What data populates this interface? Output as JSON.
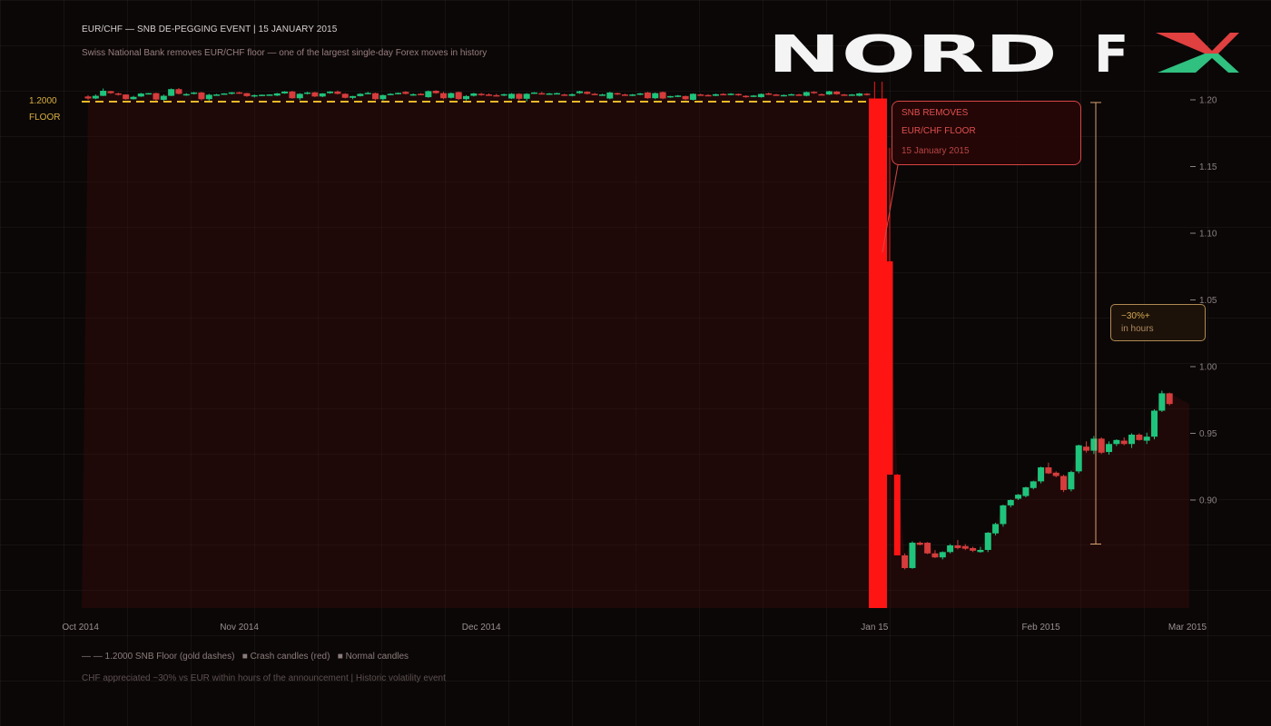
{
  "header": {
    "title": "EUR/CHF — SNB DE-PEGGING EVENT | 15 JANUARY 2015",
    "subtitle": "Swiss National Bank removes EUR/CHF floor — one of the largest single-day Forex moves in history"
  },
  "logo": {
    "text": "NORD FX",
    "colors": {
      "x_top": "#e04040",
      "x_bottom": "#30c080"
    }
  },
  "floor_label": {
    "value": "1.2000",
    "text": "FLOOR"
  },
  "callout": {
    "line1": "SNB REMOVES",
    "line2": "EUR/CHF FLOOR",
    "date": "15 January 2015"
  },
  "move_box": {
    "line1": "−30%+",
    "line2": "in hours"
  },
  "legend": {
    "floor": "— — 1.2000 SNB Floor (gold dashes)",
    "crash": "■ Crash candles (red)",
    "normal": "■ Normal candles"
  },
  "footnote": "CHF appreciated ~30% vs EUR within hours of the announcement | Historic volatility event",
  "colors": {
    "up": "#1fc47c",
    "down": "#d63c3c",
    "crash": "#ff1414",
    "floor": "#e8b828",
    "bracket": "#d6a070",
    "background": "#0b0707"
  },
  "chart_data": {
    "type": "candlestick",
    "instrument": "EUR/CHF",
    "ylim": [
      0.819,
      1.2136
    ],
    "yticks": [
      "1.20",
      "1.15",
      "1.10",
      "1.05",
      "1.00",
      "0.95",
      "0.90"
    ],
    "ytick_values": [
      1.2,
      1.15,
      1.1,
      1.05,
      1.0,
      0.95,
      0.9
    ],
    "xticks": [
      {
        "label": "Oct 2014",
        "index": -1
      },
      {
        "label": "Nov 2014",
        "index": 20
      },
      {
        "label": "Dec 2014",
        "index": 52
      },
      {
        "label": "Jan 15",
        "index": 104
      },
      {
        "label": "Feb 2015",
        "index": 126
      },
      {
        "label": "Mar 2015",
        "index": 146
      }
    ],
    "grid": true,
    "floor_level": 1.2,
    "move_bracket": [
      1.198,
      0.867
    ],
    "crash_indices": [
      104,
      105,
      106,
      107
    ],
    "ohlc": [
      [
        1.2025,
        1.2035,
        1.2,
        1.201
      ],
      [
        1.201,
        1.204,
        1.2005,
        1.203
      ],
      [
        1.203,
        1.2085,
        1.2028,
        1.2068
      ],
      [
        1.2065,
        1.2068,
        1.2045,
        1.205
      ],
      [
        1.2048,
        1.2054,
        1.2032,
        1.2038
      ],
      [
        1.204,
        1.2042,
        1.2,
        1.2005
      ],
      [
        1.2005,
        1.203,
        1.2002,
        1.2022
      ],
      [
        1.2025,
        1.2052,
        1.2022,
        1.2047
      ],
      [
        1.2045,
        1.2052,
        1.204,
        1.205
      ],
      [
        1.205,
        1.2054,
        1.199,
        1.2002
      ],
      [
        1.2,
        1.204,
        1.1992,
        1.203
      ],
      [
        1.203,
        1.2085,
        1.2028,
        1.208
      ],
      [
        1.208,
        1.2088,
        1.204,
        1.2045
      ],
      [
        1.204,
        1.205,
        1.203,
        1.2043
      ],
      [
        1.2045,
        1.2058,
        1.204,
        1.2055
      ],
      [
        1.2055,
        1.206,
        1.1995,
        1.2005
      ],
      [
        1.2005,
        1.2045,
        1.199,
        1.2038
      ],
      [
        1.2038,
        1.2045,
        1.2033,
        1.204
      ],
      [
        1.2042,
        1.205,
        1.2038,
        1.2048
      ],
      [
        1.2045,
        1.2058,
        1.204,
        1.2056
      ],
      [
        1.2056,
        1.206,
        1.2044,
        1.2048
      ],
      [
        1.205,
        1.2052,
        1.2022,
        1.2028
      ],
      [
        1.2025,
        1.204,
        1.2018,
        1.2035
      ],
      [
        1.2035,
        1.204,
        1.2032,
        1.2038
      ],
      [
        1.2036,
        1.2042,
        1.2034,
        1.204
      ],
      [
        1.2032,
        1.2052,
        1.2028,
        1.2048
      ],
      [
        1.2048,
        1.2065,
        1.2045,
        1.2062
      ],
      [
        1.2062,
        1.2068,
        1.2008,
        1.2012
      ],
      [
        1.2012,
        1.205,
        1.1998,
        1.2045
      ],
      [
        1.205,
        1.206,
        1.204,
        1.2055
      ],
      [
        1.2056,
        1.206,
        1.202,
        1.2025
      ],
      [
        1.2025,
        1.205,
        1.202,
        1.2048
      ],
      [
        1.205,
        1.2065,
        1.2046,
        1.2062
      ],
      [
        1.2062,
        1.207,
        1.204,
        1.2045
      ],
      [
        1.2045,
        1.205,
        1.201,
        1.2015
      ],
      [
        1.2015,
        1.203,
        1.2005,
        1.2028
      ],
      [
        1.2028,
        1.205,
        1.2025,
        1.2045
      ],
      [
        1.2045,
        1.206,
        1.2042,
        1.2052
      ],
      [
        1.205,
        1.2054,
        1.1998,
        1.2005
      ],
      [
        1.2005,
        1.204,
        1.1995,
        1.2035
      ],
      [
        1.204,
        1.205,
        1.2035,
        1.2045
      ],
      [
        1.2048,
        1.2055,
        1.204,
        1.2052
      ],
      [
        1.206,
        1.2065,
        1.204,
        1.2045
      ],
      [
        1.204,
        1.2048,
        1.203,
        1.2042
      ],
      [
        1.2045,
        1.205,
        1.2035,
        1.204
      ],
      [
        1.202,
        1.207,
        1.2015,
        1.2065
      ],
      [
        1.2068,
        1.2072,
        1.2045,
        1.205
      ],
      [
        1.205,
        1.206,
        1.2005,
        1.2012
      ],
      [
        1.2015,
        1.2055,
        1.201,
        1.205
      ],
      [
        1.2058,
        1.2062,
        1.2,
        1.2006
      ],
      [
        1.2005,
        1.2035,
        1.1995,
        1.2028
      ],
      [
        1.203,
        1.2052,
        1.2025,
        1.2048
      ],
      [
        1.2045,
        1.2052,
        1.203,
        1.2035
      ],
      [
        1.204,
        1.2048,
        1.203,
        1.2038
      ],
      [
        1.2035,
        1.2045,
        1.2025,
        1.203
      ],
      [
        1.2032,
        1.2046,
        1.2028,
        1.2042
      ],
      [
        1.201,
        1.205,
        1.2006,
        1.2045
      ],
      [
        1.2045,
        1.205,
        1.1995,
        1.2008
      ],
      [
        1.2008,
        1.205,
        1.1988,
        1.2045
      ],
      [
        1.205,
        1.2058,
        1.2045,
        1.2055
      ],
      [
        1.205,
        1.206,
        1.204,
        1.2045
      ],
      [
        1.2045,
        1.2052,
        1.2038,
        1.2048
      ],
      [
        1.2048,
        1.2054,
        1.2042,
        1.205
      ],
      [
        1.204,
        1.2046,
        1.203,
        1.2034
      ],
      [
        1.203,
        1.2048,
        1.2026,
        1.2042
      ],
      [
        1.205,
        1.2068,
        1.2045,
        1.2064
      ],
      [
        1.206,
        1.2064,
        1.204,
        1.2045
      ],
      [
        1.2045,
        1.2052,
        1.2036,
        1.204
      ],
      [
        1.2038,
        1.2045,
        1.203,
        1.204
      ],
      [
        1.201,
        1.206,
        1.2005,
        1.2055
      ],
      [
        1.205,
        1.2054,
        1.2036,
        1.204
      ],
      [
        1.204,
        1.2046,
        1.203,
        1.2036
      ],
      [
        1.2034,
        1.2044,
        1.2028,
        1.204
      ],
      [
        1.204,
        1.2052,
        1.2035,
        1.2048
      ],
      [
        1.2055,
        1.206,
        1.2008,
        1.2012
      ],
      [
        1.2012,
        1.2055,
        1.2005,
        1.205
      ],
      [
        1.2058,
        1.2062,
        1.2005,
        1.201
      ],
      [
        1.202,
        1.203,
        1.2015,
        1.2028
      ],
      [
        1.2025,
        1.2036,
        1.202,
        1.2032
      ],
      [
        1.2028,
        1.2032,
        1.1996,
        1.2004
      ],
      [
        1.2,
        1.2048,
        1.1995,
        1.2045
      ],
      [
        1.204,
        1.2046,
        1.2032,
        1.2036
      ],
      [
        1.2036,
        1.2042,
        1.203,
        1.2034
      ],
      [
        1.203,
        1.2046,
        1.2028,
        1.2042
      ],
      [
        1.2044,
        1.205,
        1.2036,
        1.204
      ],
      [
        1.2038,
        1.205,
        1.2034,
        1.2046
      ],
      [
        1.2044,
        1.2048,
        1.203,
        1.2034
      ],
      [
        1.203,
        1.2034,
        1.2015,
        1.202
      ],
      [
        1.2025,
        1.2036,
        1.202,
        1.2032
      ],
      [
        1.202,
        1.2048,
        1.2016,
        1.2044
      ],
      [
        1.2048,
        1.2054,
        1.2036,
        1.204
      ],
      [
        1.204,
        1.2044,
        1.203,
        1.2034
      ],
      [
        1.203,
        1.204,
        1.2026,
        1.2036
      ],
      [
        1.2038,
        1.2046,
        1.2034,
        1.2042
      ],
      [
        1.204,
        1.2045,
        1.2035,
        1.2038
      ],
      [
        1.203,
        1.2062,
        1.2026,
        1.2058
      ],
      [
        1.206,
        1.2064,
        1.2045,
        1.205
      ],
      [
        1.2042,
        1.2048,
        1.2036,
        1.204
      ],
      [
        1.204,
        1.2068,
        1.2036,
        1.2064
      ],
      [
        1.2062,
        1.2066,
        1.2038,
        1.2042
      ],
      [
        1.204,
        1.2044,
        1.2036,
        1.2038
      ],
      [
        1.2038,
        1.2044,
        1.2034,
        1.204
      ],
      [
        1.203,
        1.2052,
        1.2026,
        1.2048
      ],
      [
        1.2046,
        1.205,
        1.2032,
        1.2036
      ],
      [
        1.201,
        1.2136,
        0.819,
        0.819
      ],
      [
        1.201,
        1.2136,
        0.819,
        0.819
      ],
      [
        1.079,
        1.164,
        0.919,
        0.919
      ],
      [
        0.919,
        0.9195,
        0.8585,
        0.8585
      ],
      [
        0.8585,
        0.86,
        0.848,
        0.849
      ],
      [
        0.849,
        0.869,
        0.8485,
        0.868
      ],
      [
        0.868,
        0.869,
        0.866,
        0.8665
      ],
      [
        0.868,
        0.8685,
        0.8595,
        0.86
      ],
      [
        0.86,
        0.8625,
        0.8565,
        0.857
      ],
      [
        0.857,
        0.8615,
        0.8555,
        0.861
      ],
      [
        0.861,
        0.867,
        0.86,
        0.866
      ],
      [
        0.866,
        0.87,
        0.863,
        0.864
      ],
      [
        0.8655,
        0.867,
        0.8625,
        0.8635
      ],
      [
        0.864,
        0.865,
        0.861,
        0.862
      ],
      [
        0.861,
        0.865,
        0.8605,
        0.8626
      ],
      [
        0.8626,
        0.876,
        0.861,
        0.8755
      ],
      [
        0.875,
        0.883,
        0.8735,
        0.882
      ],
      [
        0.882,
        0.8965,
        0.88,
        0.896
      ],
      [
        0.896,
        0.9005,
        0.8945,
        0.9
      ],
      [
        0.901,
        0.9045,
        0.9,
        0.904
      ],
      [
        0.903,
        0.91,
        0.902,
        0.9095
      ],
      [
        0.909,
        0.9145,
        0.908,
        0.914
      ],
      [
        0.914,
        0.925,
        0.9125,
        0.9245
      ],
      [
        0.9245,
        0.928,
        0.9195,
        0.92
      ],
      [
        0.9205,
        0.9215,
        0.917,
        0.918
      ],
      [
        0.918,
        0.919,
        0.906,
        0.9075
      ],
      [
        0.908,
        0.922,
        0.9065,
        0.921
      ],
      [
        0.9215,
        0.9415,
        0.92,
        0.941
      ],
      [
        0.94,
        0.944,
        0.9355,
        0.937
      ],
      [
        0.937,
        0.948,
        0.9345,
        0.946
      ],
      [
        0.946,
        0.947,
        0.9345,
        0.9355
      ],
      [
        0.936,
        0.944,
        0.934,
        0.942
      ],
      [
        0.942,
        0.9455,
        0.9405,
        0.945
      ],
      [
        0.9445,
        0.947,
        0.941,
        0.942
      ],
      [
        0.942,
        0.95,
        0.939,
        0.949
      ],
      [
        0.949,
        0.95,
        0.9445,
        0.945
      ],
      [
        0.9445,
        0.9505,
        0.942,
        0.9475
      ],
      [
        0.9475,
        0.968,
        0.9455,
        0.967
      ],
      [
        0.967,
        0.982,
        0.966,
        0.98
      ],
      [
        0.98,
        0.9805,
        0.971,
        0.972
      ]
    ]
  }
}
